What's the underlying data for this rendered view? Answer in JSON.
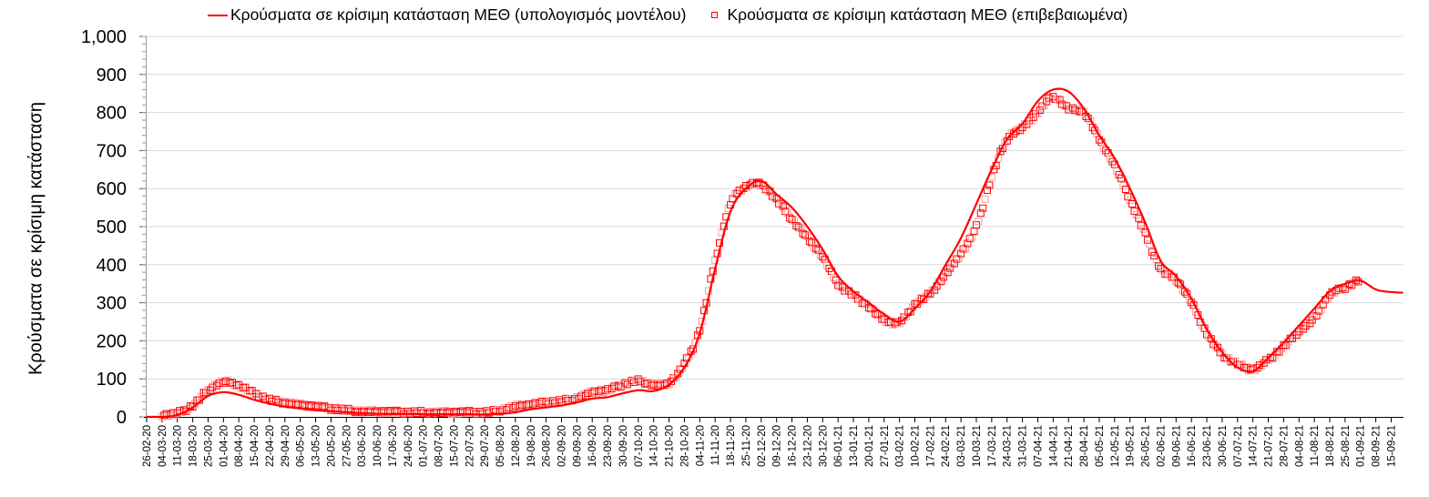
{
  "chart_data": {
    "type": "line",
    "title": "",
    "xlabel": "",
    "ylabel": "Κρούσματα σε κρίσιμη κατάσταση",
    "ylim": [
      0,
      1000
    ],
    "yticks": [
      "0",
      "100",
      "200",
      "300",
      "400",
      "500",
      "600",
      "700",
      "800",
      "900",
      "1,000"
    ],
    "grid": true,
    "legend_position": "top",
    "colors": {
      "model": "#ff0000",
      "confirmed": "#ff0000",
      "grid": "#d9d9d9",
      "axis": "#000000"
    },
    "categories": [
      "26-02-20",
      "04-03-20",
      "11-03-20",
      "18-03-20",
      "25-03-20",
      "01-04-20",
      "08-04-20",
      "15-04-20",
      "22-04-20",
      "29-04-20",
      "06-05-20",
      "13-05-20",
      "20-05-20",
      "27-05-20",
      "03-06-20",
      "10-06-20",
      "17-06-20",
      "24-06-20",
      "01-07-20",
      "08-07-20",
      "15-07-20",
      "22-07-20",
      "29-07-20",
      "05-08-20",
      "12-08-20",
      "19-08-20",
      "26-08-20",
      "02-09-20",
      "09-09-20",
      "16-09-20",
      "23-09-20",
      "30-09-20",
      "07-10-20",
      "14-10-20",
      "21-10-20",
      "28-10-20",
      "04-11-20",
      "11-11-20",
      "18-11-20",
      "25-11-20",
      "02-12-20",
      "09-12-20",
      "16-12-20",
      "23-12-20",
      "30-12-20",
      "06-01-21",
      "13-01-21",
      "20-01-21",
      "27-01-21",
      "03-02-21",
      "10-02-21",
      "17-02-21",
      "24-02-21",
      "03-03-21",
      "10-03-21",
      "17-03-21",
      "24-03-21",
      "31-03-21",
      "07-04-21",
      "14-04-21",
      "21-04-21",
      "28-04-21",
      "05-05-21",
      "12-05-21",
      "19-05-21",
      "26-05-21",
      "02-06-21",
      "09-06-21",
      "16-06-21",
      "23-06-21",
      "30-06-21",
      "07-07-21",
      "14-07-21",
      "21-07-21",
      "28-07-21",
      "04-08-21",
      "11-08-21",
      "18-08-21",
      "25-08-21",
      "01-09-21",
      "08-09-21",
      "15-09-21"
    ],
    "series": [
      {
        "name": "Κρούσματα σε κρίσιμη κατάσταση ΜΕΘ (υπολογισμός μοντέλου)",
        "style": "line",
        "values": [
          0,
          0,
          5,
          25,
          55,
          65,
          58,
          45,
          35,
          27,
          22,
          18,
          15,
          12,
          10,
          8,
          8,
          8,
          7,
          7,
          7,
          7,
          6,
          8,
          12,
          20,
          25,
          30,
          38,
          48,
          52,
          62,
          70,
          68,
          85,
          130,
          220,
          390,
          540,
          600,
          620,
          585,
          550,
          500,
          440,
          370,
          330,
          300,
          270,
          250,
          285,
          330,
          400,
          470,
          560,
          650,
          730,
          770,
          830,
          860,
          855,
          810,
          740,
          680,
          600,
          510,
          410,
          370,
          310,
          230,
          170,
          130,
          120,
          155,
          195,
          240,
          285,
          330,
          350,
          358,
          335,
          328
        ]
      },
      {
        "name": "Κρούσματα σε κρίσιμη κατάσταση ΜΕΘ (επιβεβαιωμένα)",
        "style": "markers-square",
        "values": [
          null,
          5,
          10,
          30,
          70,
          92,
          82,
          62,
          45,
          38,
          32,
          27,
          22,
          18,
          15,
          14,
          13,
          12,
          12,
          12,
          12,
          12,
          12,
          18,
          28,
          32,
          38,
          42,
          50,
          65,
          70,
          85,
          95,
          85,
          90,
          140,
          230,
          410,
          560,
          605,
          610,
          570,
          520,
          470,
          420,
          350,
          320,
          290,
          255,
          248,
          295,
          325,
          375,
          430,
          500,
          630,
          730,
          760,
          800,
          840,
          810,
          800,
          730,
          660,
          570,
          480,
          390,
          360,
          300,
          220,
          165,
          140,
          125,
          150,
          185,
          225,
          260,
          320,
          340,
          360,
          null,
          null
        ]
      }
    ]
  },
  "legend": {
    "model_label": "Κρούσματα σε κρίσιμη κατάσταση ΜΕΘ (υπολογισμός μοντέλου)",
    "confirmed_label": "Κρούσματα σε κρίσιμη κατάσταση ΜΕΘ (επιβεβαιωμένα)"
  },
  "axis": {
    "y_title": "Κρούσματα σε κρίσιμη κατάσταση"
  }
}
